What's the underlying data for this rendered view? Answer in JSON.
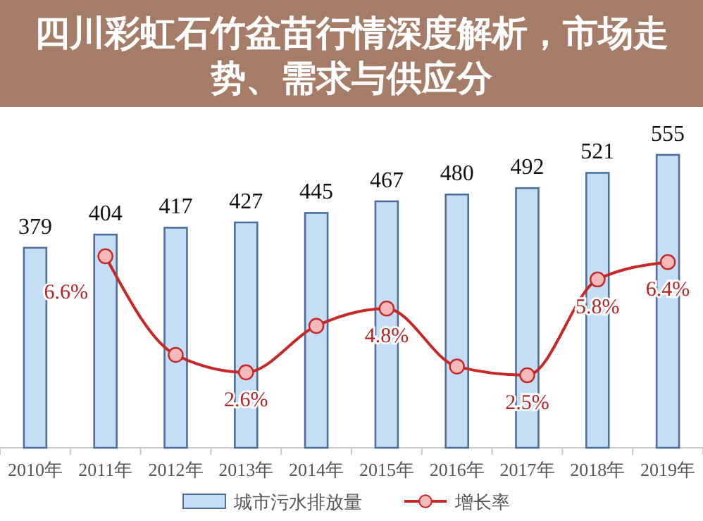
{
  "chart_data": {
    "type": "bar",
    "title": "四川彩虹石竹盆苗行情深度解析，市场走势、需求与供应分",
    "categories": [
      "2010年",
      "2011年",
      "2012年",
      "2013年",
      "2014年",
      "2015年",
      "2016年",
      "2017年",
      "2018年",
      "2019年"
    ],
    "series": [
      {
        "name": "城市污水排放量",
        "color": "#c6ddf6",
        "values": [
          379,
          404,
          417,
          427,
          445,
          467,
          480,
          492,
          521,
          555
        ],
        "value_labels": [
          "379",
          "404",
          "417",
          "427",
          "445",
          "467",
          "480",
          "492",
          "521",
          "555"
        ]
      },
      {
        "name": "增长率",
        "type": "line",
        "axis": "y2",
        "color": "#c62828",
        "values": [
          null,
          6.6,
          3.2,
          2.6,
          4.2,
          4.8,
          2.8,
          2.5,
          5.8,
          6.4
        ],
        "value_labels": [
          null,
          "6.6%",
          null,
          "2.6%",
          null,
          "4.8%",
          null,
          "2.5%",
          "5.8%",
          "6.4%"
        ]
      }
    ],
    "legend": "bottom",
    "marker": "circle"
  }
}
